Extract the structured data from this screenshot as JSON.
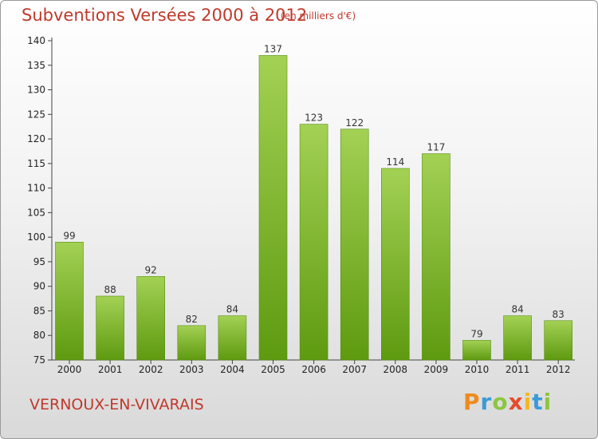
{
  "page": {
    "title": "Subventions Versées 2000 à 2012",
    "unit_note": "(en milliers d'€)",
    "commune": "VERNOUX-EN-VIVARAIS",
    "brand": [
      "P",
      "r",
      "o",
      "x",
      "i",
      "t",
      "i"
    ]
  },
  "colors": {
    "title": "#c0392b",
    "bar_light": "#a3d154",
    "bar_dark": "#5e9a10",
    "brand": [
      "#f08a1c",
      "#3a9bd8",
      "#8cc63f",
      "#e54b2c",
      "#f5b81c",
      "#3a9bd8",
      "#8cc63f"
    ]
  },
  "chart_data": {
    "type": "bar",
    "categories": [
      "2000",
      "2001",
      "2002",
      "2003",
      "2004",
      "2005",
      "2006",
      "2007",
      "2008",
      "2009",
      "2010",
      "2011",
      "2012"
    ],
    "values": [
      99,
      88,
      92,
      82,
      84,
      137,
      123,
      122,
      114,
      117,
      79,
      84,
      83
    ],
    "ylim": [
      75,
      140
    ],
    "yticks": [
      75,
      80,
      85,
      90,
      95,
      100,
      105,
      110,
      115,
      120,
      125,
      130,
      135,
      140
    ],
    "grid": false
  }
}
